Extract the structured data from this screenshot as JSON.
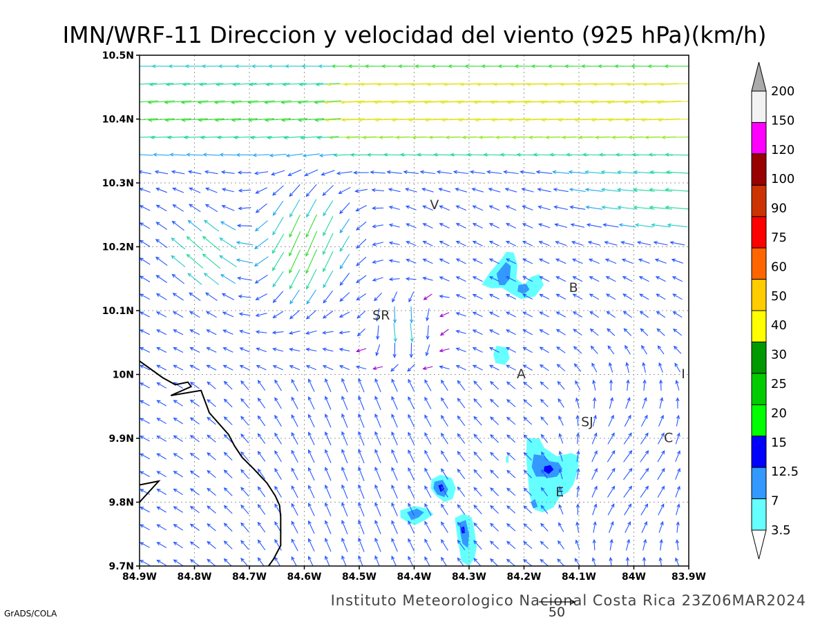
{
  "title": "IMN/WRF-11 Direccion y velocidad del viento (925 hPa)(km/h)",
  "footer": "Instituto Meteorologico Nacional Costa Rica  23Z06MAR2024",
  "credit": "GrADS/COLA",
  "reference_vector": {
    "label": "50",
    "speed": 50
  },
  "map": {
    "lon_range": [
      -84.9,
      -83.9
    ],
    "lat_range": [
      9.7,
      10.5
    ],
    "lon_ticks": [
      {
        "value": -84.9,
        "label": "84.9W"
      },
      {
        "value": -84.8,
        "label": "84.8W"
      },
      {
        "value": -84.7,
        "label": "84.7W"
      },
      {
        "value": -84.6,
        "label": "84.6W"
      },
      {
        "value": -84.5,
        "label": "84.5W"
      },
      {
        "value": -84.4,
        "label": "84.4W"
      },
      {
        "value": -84.3,
        "label": "84.3W"
      },
      {
        "value": -84.2,
        "label": "84.2W"
      },
      {
        "value": -84.1,
        "label": "84.1W"
      },
      {
        "value": -84.0,
        "label": "84W"
      },
      {
        "value": -83.9,
        "label": "83.9W"
      }
    ],
    "lat_ticks": [
      {
        "value": 9.7,
        "label": "9.7N"
      },
      {
        "value": 9.8,
        "label": "9.8N"
      },
      {
        "value": 9.9,
        "label": "9.9N"
      },
      {
        "value": 10.0,
        "label": "10N"
      },
      {
        "value": 10.1,
        "label": "10.1N"
      },
      {
        "value": 10.2,
        "label": "10.2N"
      },
      {
        "value": 10.3,
        "label": "10.3N"
      },
      {
        "value": 10.4,
        "label": "10.4N"
      },
      {
        "value": 10.5,
        "label": "10.5N"
      }
    ],
    "grid": true,
    "places": [
      {
        "label": "V",
        "lon": -84.363,
        "lat": 10.265
      },
      {
        "label": "SR",
        "lon": -84.46,
        "lat": 10.092
      },
      {
        "label": "B",
        "lon": -84.11,
        "lat": 10.135
      },
      {
        "label": "A",
        "lon": -84.205,
        "lat": 10.0
      },
      {
        "label": "SJ",
        "lon": -84.085,
        "lat": 9.925
      },
      {
        "label": "C",
        "lon": -83.937,
        "lat": 9.9
      },
      {
        "label": "E",
        "lon": -84.135,
        "lat": 9.815
      },
      {
        "label": "I",
        "lon": -83.91,
        "lat": 10.0
      }
    ],
    "coastline": [
      [
        -84.9,
        10.021
      ],
      [
        -84.858,
        9.995
      ],
      [
        -84.835,
        9.984
      ],
      [
        -84.812,
        9.988
      ],
      [
        -84.806,
        9.981
      ],
      [
        -84.843,
        9.967
      ],
      [
        -84.788,
        9.975
      ],
      [
        -84.773,
        9.94
      ],
      [
        -84.738,
        9.906
      ],
      [
        -84.727,
        9.888
      ],
      [
        -84.713,
        9.87
      ],
      [
        -84.692,
        9.852
      ],
      [
        -84.668,
        9.83
      ],
      [
        -84.653,
        9.81
      ],
      [
        -84.645,
        9.795
      ],
      [
        -84.643,
        9.777
      ],
      [
        -84.643,
        9.755
      ],
      [
        -84.643,
        9.732
      ],
      [
        -84.656,
        9.711
      ],
      [
        -84.665,
        9.7
      ]
    ],
    "coastline2": [
      [
        -84.9,
        9.827
      ],
      [
        -84.865,
        9.833
      ],
      [
        -84.9,
        9.8
      ]
    ]
  },
  "colorbar": {
    "levels": [
      "3.5",
      "7",
      "12.5",
      "15",
      "20",
      "25",
      "30",
      "40",
      "50",
      "60",
      "75",
      "90",
      "100",
      "120",
      "150",
      "200"
    ],
    "colors": [
      "#66ffff",
      "#3399ff",
      "#0000ff",
      "#00ff00",
      "#00cc00",
      "#009900",
      "#ffff00",
      "#ffcc00",
      "#ff6600",
      "#ff0000",
      "#cc3300",
      "#990000",
      "#ff00ff",
      "#9933cc",
      "#f2f2f2"
    ],
    "top_color": "#aaaaaa"
  },
  "speed_fills": [
    {
      "level": 3.5,
      "color": "#66ffff",
      "polygons": [
        [
          [
            -84.277,
            10.141
          ],
          [
            -84.262,
            10.16
          ],
          [
            -84.242,
            10.18
          ],
          [
            -84.232,
            10.192
          ],
          [
            -84.219,
            10.191
          ],
          [
            -84.212,
            10.172
          ],
          [
            -84.214,
            10.15
          ],
          [
            -84.2,
            10.14
          ],
          [
            -84.187,
            10.153
          ],
          [
            -84.172,
            10.157
          ],
          [
            -84.164,
            10.14
          ],
          [
            -84.18,
            10.122
          ],
          [
            -84.205,
            10.118
          ],
          [
            -84.222,
            10.126
          ],
          [
            -84.24,
            10.136
          ],
          [
            -84.26,
            10.135
          ]
        ],
        [
          [
            -84.25,
            10.045
          ],
          [
            -84.231,
            10.042
          ],
          [
            -84.226,
            10.025
          ],
          [
            -84.235,
            10.015
          ],
          [
            -84.252,
            10.018
          ],
          [
            -84.256,
            10.032
          ]
        ],
        [
          [
            -84.195,
            9.9
          ],
          [
            -84.172,
            9.9
          ],
          [
            -84.163,
            9.885
          ],
          [
            -84.14,
            9.872
          ],
          [
            -84.114,
            9.877
          ],
          [
            -84.1,
            9.872
          ],
          [
            -84.102,
            9.85
          ],
          [
            -84.11,
            9.828
          ],
          [
            -84.12,
            9.816
          ],
          [
            -84.135,
            9.808
          ],
          [
            -84.146,
            9.792
          ],
          [
            -84.165,
            9.784
          ],
          [
            -84.18,
            9.788
          ],
          [
            -84.19,
            9.81
          ],
          [
            -84.193,
            9.84
          ],
          [
            -84.196,
            9.87
          ]
        ],
        [
          [
            -84.368,
            9.836
          ],
          [
            -84.352,
            9.843
          ],
          [
            -84.332,
            9.838
          ],
          [
            -84.324,
            9.822
          ],
          [
            -84.33,
            9.805
          ],
          [
            -84.345,
            9.8
          ],
          [
            -84.36,
            9.81
          ],
          [
            -84.37,
            9.822
          ]
        ],
        [
          [
            -84.425,
            9.787
          ],
          [
            -84.4,
            9.794
          ],
          [
            -84.375,
            9.79
          ],
          [
            -84.365,
            9.781
          ],
          [
            -84.38,
            9.772
          ],
          [
            -84.398,
            9.764
          ],
          [
            -84.41,
            9.768
          ],
          [
            -84.425,
            9.776
          ]
        ],
        [
          [
            -84.326,
            9.775
          ],
          [
            -84.31,
            9.782
          ],
          [
            -84.295,
            9.776
          ],
          [
            -84.29,
            9.755
          ],
          [
            -84.286,
            9.73
          ],
          [
            -84.29,
            9.712
          ],
          [
            -84.3,
            9.7
          ],
          [
            -84.314,
            9.707
          ],
          [
            -84.318,
            9.728
          ],
          [
            -84.322,
            9.75
          ]
        ],
        [
          [
            -84.233,
            9.872
          ],
          [
            -84.228,
            9.872
          ],
          [
            -84.228,
            9.862
          ],
          [
            -84.233,
            9.862
          ]
        ]
      ]
    },
    {
      "level": 7,
      "color": "#3399ff",
      "polygons": [
        [
          [
            -84.25,
            10.158
          ],
          [
            -84.233,
            10.176
          ],
          [
            -84.224,
            10.17
          ],
          [
            -84.226,
            10.15
          ],
          [
            -84.235,
            10.14
          ],
          [
            -84.245,
            10.14
          ]
        ],
        [
          [
            -84.21,
            10.14
          ],
          [
            -84.196,
            10.142
          ],
          [
            -84.19,
            10.133
          ],
          [
            -84.2,
            10.126
          ],
          [
            -84.212,
            10.13
          ]
        ],
        [
          [
            -84.182,
            9.875
          ],
          [
            -84.166,
            9.873
          ],
          [
            -84.153,
            9.864
          ],
          [
            -84.137,
            9.862
          ],
          [
            -84.13,
            9.852
          ],
          [
            -84.14,
            9.84
          ],
          [
            -84.155,
            9.838
          ],
          [
            -84.164,
            9.84
          ],
          [
            -84.178,
            9.84
          ],
          [
            -84.186,
            9.855
          ]
        ],
        [
          [
            -84.363,
            9.832
          ],
          [
            -84.348,
            9.835
          ],
          [
            -84.338,
            9.82
          ],
          [
            -84.345,
            9.808
          ],
          [
            -84.358,
            9.812
          ],
          [
            -84.365,
            9.822
          ]
        ],
        [
          [
            -84.413,
            9.784
          ],
          [
            -84.395,
            9.79
          ],
          [
            -84.382,
            9.784
          ],
          [
            -84.392,
            9.776
          ],
          [
            -84.405,
            9.772
          ]
        ],
        [
          [
            -84.318,
            9.768
          ],
          [
            -84.306,
            9.772
          ],
          [
            -84.3,
            9.75
          ],
          [
            -84.302,
            9.728
          ],
          [
            -84.312,
            9.735
          ],
          [
            -84.316,
            9.752
          ]
        ],
        [
          [
            -84.188,
            9.8
          ],
          [
            -84.18,
            9.805
          ],
          [
            -84.175,
            9.793
          ],
          [
            -84.183,
            9.79
          ]
        ]
      ]
    },
    {
      "level": 12.5,
      "color": "#0000ff",
      "polygons": [
        [
          [
            -84.163,
            9.856
          ],
          [
            -84.152,
            9.858
          ],
          [
            -84.146,
            9.851
          ],
          [
            -84.155,
            9.844
          ],
          [
            -84.164,
            9.849
          ]
        ],
        [
          [
            -84.356,
            9.826
          ],
          [
            -84.349,
            9.828
          ],
          [
            -84.345,
            9.82
          ],
          [
            -84.352,
            9.816
          ]
        ],
        [
          [
            -84.315,
            9.76
          ],
          [
            -84.309,
            9.762
          ],
          [
            -84.307,
            9.752
          ],
          [
            -84.313,
            9.751
          ]
        ]
      ]
    }
  ],
  "wind_field": {
    "vectors_per_degree_lon": 33,
    "vectors_per_degree_lat": 36,
    "max_speed": 60
  }
}
